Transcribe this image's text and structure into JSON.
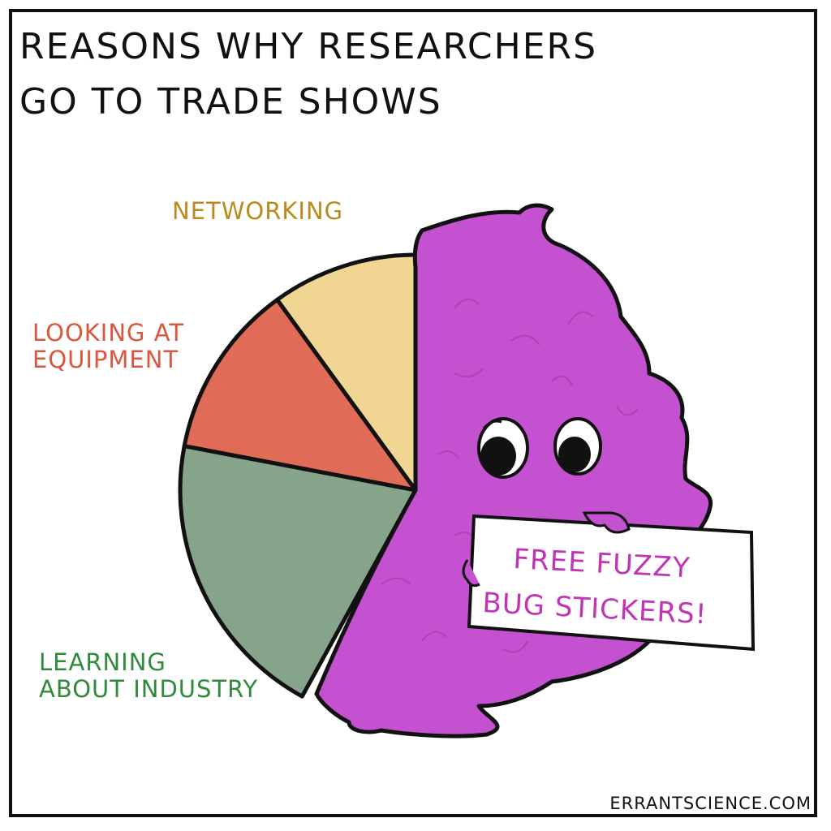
{
  "chart_data": {
    "type": "pie",
    "title": "Reasons why researchers go to trade shows",
    "categories": [
      "Networking",
      "Looking at equipment",
      "Learning about industry",
      "Free fuzzy bug stickers!"
    ],
    "values": [
      10,
      12,
      20,
      58
    ],
    "unit": "%",
    "legend": "none",
    "slice_colors": [
      "#f1d592",
      "#e06b56",
      "#86a48a",
      "#c451cf"
    ],
    "label_colors": [
      "#b88b1d",
      "#d9573f",
      "#2f8a3b",
      "#c035b4"
    ]
  },
  "comic": {
    "title_line1": "Reasons why researchers",
    "title_line2": "go to trade shows",
    "label_networking": "Networking",
    "label_equipment_1": "Looking at",
    "label_equipment_2": "equipment",
    "label_industry_1": "Learning",
    "label_industry_2": "about industry",
    "sign_line1": "Free fuzzy",
    "sign_line2": "bug stickers!",
    "credit": "ErrantScience.com"
  }
}
